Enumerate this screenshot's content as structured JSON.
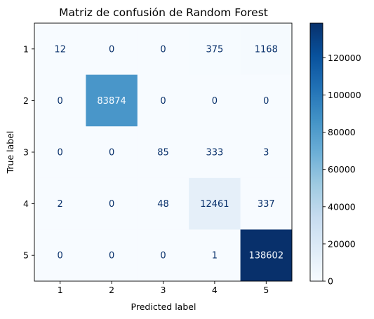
{
  "chart_data": {
    "type": "heatmap",
    "title": "Matriz de confusión de Random Forest",
    "xlabel": "Predicted label",
    "ylabel": "True label",
    "x_categories": [
      "1",
      "2",
      "3",
      "4",
      "5"
    ],
    "y_categories": [
      "1",
      "2",
      "3",
      "4",
      "5"
    ],
    "values": [
      [
        12,
        0,
        0,
        375,
        1168
      ],
      [
        0,
        83874,
        0,
        0,
        0
      ],
      [
        0,
        0,
        85,
        333,
        3
      ],
      [
        2,
        0,
        48,
        12461,
        337
      ],
      [
        0,
        0,
        0,
        1,
        138602
      ]
    ],
    "colormap": "Blues",
    "colorbar": {
      "range": [
        0,
        138602
      ],
      "ticks": [
        0,
        20000,
        40000,
        60000,
        80000,
        100000,
        120000
      ],
      "tick_labels": [
        "0",
        "20000",
        "40000",
        "60000",
        "80000",
        "100000",
        "120000"
      ]
    },
    "colors": {
      "low": "#f7fbff",
      "high": "#08306b",
      "text_dark": "#08306b",
      "text_light": "#f7fbff"
    }
  }
}
